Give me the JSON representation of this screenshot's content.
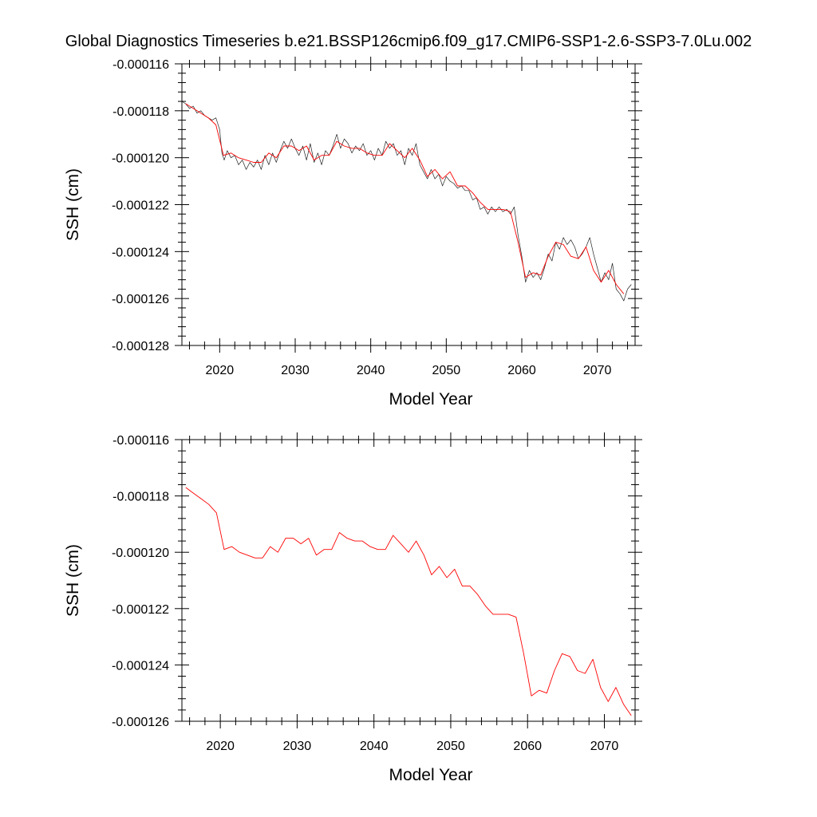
{
  "title": "Global Diagnostics Timeseries b.e21.BSSP126cmip6.f09_g17.CMIP6-SSP1-2.6-SSP3-7.0Lu.002",
  "colors": {
    "monthly": "#222222",
    "annual": "#ff0000",
    "axis": "#000000"
  },
  "chart_data": [
    {
      "type": "line",
      "xlabel": "Model Year",
      "ylabel": "SSH (cm)",
      "xlim": [
        2015,
        2075
      ],
      "ylim": [
        -0.000128,
        -0.000116
      ],
      "xticks": [
        2020,
        2030,
        2040,
        2050,
        2060,
        2070
      ],
      "xtick_labels": [
        "2020",
        "2030",
        "2040",
        "2050",
        "2060",
        "2070"
      ],
      "yticks": [
        -0.000128,
        -0.000126,
        -0.000124,
        -0.000122,
        -0.00012,
        -0.000118,
        -0.000116
      ],
      "ytick_labels": [
        "-0.000128",
        "-0.000126",
        "-0.000124",
        "-0.000122",
        "-0.000120",
        "-0.000118",
        "-0.000116"
      ],
      "grid": false,
      "series": [
        {
          "kind": "monthly",
          "x": [
            2015.0,
            2015.5,
            2016.0,
            2016.5,
            2017.0,
            2017.5,
            2018.0,
            2018.5,
            2019.0,
            2019.5,
            2020.0,
            2020.3,
            2020.6,
            2021.0,
            2021.5,
            2022.0,
            2022.5,
            2023.0,
            2023.5,
            2024.0,
            2024.5,
            2025.0,
            2025.5,
            2026.0,
            2026.5,
            2027.0,
            2027.5,
            2028.0,
            2028.5,
            2029.0,
            2029.5,
            2030.0,
            2030.5,
            2031.0,
            2031.5,
            2032.0,
            2032.5,
            2033.0,
            2033.5,
            2034.0,
            2034.5,
            2035.0,
            2035.5,
            2036.0,
            2036.5,
            2037.0,
            2037.5,
            2038.0,
            2038.5,
            2039.0,
            2039.5,
            2040.0,
            2040.5,
            2041.0,
            2041.5,
            2042.0,
            2042.5,
            2043.0,
            2043.5,
            2044.0,
            2044.5,
            2045.0,
            2045.5,
            2046.0,
            2046.5,
            2047.0,
            2047.5,
            2048.0,
            2048.5,
            2049.0,
            2049.5,
            2050.0,
            2050.5,
            2051.0,
            2051.5,
            2052.0,
            2052.5,
            2053.0,
            2053.5,
            2054.0,
            2054.5,
            2055.0,
            2055.5,
            2056.0,
            2056.5,
            2057.0,
            2057.5,
            2058.0,
            2058.5,
            2059.0,
            2059.5,
            2060.0,
            2060.5,
            2061.0,
            2061.5,
            2062.0,
            2062.5,
            2063.0,
            2063.5,
            2064.0,
            2064.5,
            2065.0,
            2065.5,
            2066.0,
            2066.5,
            2067.0,
            2067.5,
            2068.0,
            2068.5,
            2069.0,
            2069.5,
            2070.0,
            2070.5,
            2071.0,
            2071.5,
            2072.0,
            2072.5,
            2073.0,
            2073.5,
            2074.0,
            2074.5
          ],
          "values": [
            -0.0001176,
            -0.0001177,
            -0.0001179,
            -0.0001178,
            -0.0001181,
            -0.000118,
            -0.0001182,
            -0.0001183,
            -0.0001184,
            -0.0001183,
            -0.0001188,
            -0.0001198,
            -0.0001201,
            -0.0001197,
            -0.00012,
            -0.0001199,
            -0.0001203,
            -0.0001201,
            -0.0001205,
            -0.0001202,
            -0.0001204,
            -0.0001201,
            -0.0001205,
            -0.0001199,
            -0.0001203,
            -0.0001198,
            -0.0001202,
            -0.0001197,
            -0.0001193,
            -0.0001196,
            -0.0001192,
            -0.0001196,
            -0.0001199,
            -0.0001195,
            -0.0001201,
            -0.0001194,
            -0.0001202,
            -0.0001198,
            -0.0001203,
            -0.0001197,
            -0.0001199,
            -0.0001195,
            -0.000119,
            -0.0001196,
            -0.0001192,
            -0.0001194,
            -0.0001198,
            -0.0001195,
            -0.0001197,
            -0.0001194,
            -0.0001199,
            -0.0001197,
            -0.0001201,
            -0.0001196,
            -0.0001199,
            -0.0001193,
            -0.0001196,
            -0.0001194,
            -0.0001199,
            -0.0001197,
            -0.0001203,
            -0.0001196,
            -0.0001199,
            -0.0001194,
            -0.0001203,
            -0.0001206,
            -0.0001209,
            -0.0001205,
            -0.0001209,
            -0.0001207,
            -0.0001212,
            -0.0001208,
            -0.000121,
            -0.0001211,
            -0.0001213,
            -0.0001212,
            -0.0001214,
            -0.0001214,
            -0.0001218,
            -0.0001217,
            -0.0001222,
            -0.0001221,
            -0.0001224,
            -0.0001221,
            -0.0001223,
            -0.0001221,
            -0.0001223,
            -0.0001222,
            -0.0001224,
            -0.0001221,
            -0.0001233,
            -0.0001242,
            -0.0001253,
            -0.0001248,
            -0.0001251,
            -0.0001249,
            -0.0001252,
            -0.0001247,
            -0.0001241,
            -0.0001244,
            -0.0001236,
            -0.0001239,
            -0.0001234,
            -0.0001237,
            -0.0001235,
            -0.0001238,
            -0.0001243,
            -0.0001241,
            -0.0001238,
            -0.0001234,
            -0.0001241,
            -0.0001247,
            -0.0001253,
            -0.0001249,
            -0.0001252,
            -0.0001245,
            -0.0001256,
            -0.0001258,
            -0.0001261,
            -0.0001256,
            -0.0001254
          ]
        },
        {
          "kind": "annual",
          "x": [
            2015.5,
            2016.5,
            2017.5,
            2018.5,
            2019.5,
            2020.5,
            2021.5,
            2022.5,
            2023.5,
            2024.5,
            2025.5,
            2026.5,
            2027.5,
            2028.5,
            2029.5,
            2030.5,
            2031.5,
            2032.5,
            2033.5,
            2034.5,
            2035.5,
            2036.5,
            2037.5,
            2038.5,
            2039.5,
            2040.5,
            2041.5,
            2042.5,
            2043.5,
            2044.5,
            2045.5,
            2046.5,
            2047.5,
            2048.5,
            2049.5,
            2050.5,
            2051.5,
            2052.5,
            2053.5,
            2054.5,
            2055.5,
            2056.5,
            2057.5,
            2058.5,
            2059.5,
            2060.5,
            2061.5,
            2062.5,
            2063.5,
            2064.5,
            2065.5,
            2066.5,
            2067.5,
            2068.5,
            2069.5,
            2070.5,
            2071.5,
            2072.5,
            2073.5
          ],
          "values": [
            -0.0001177,
            -0.0001179,
            -0.0001181,
            -0.0001183,
            -0.0001186,
            -0.0001199,
            -0.0001198,
            -0.00012,
            -0.0001201,
            -0.0001202,
            -0.0001202,
            -0.0001198,
            -0.00012,
            -0.0001195,
            -0.0001195,
            -0.0001197,
            -0.0001195,
            -0.0001201,
            -0.0001199,
            -0.0001199,
            -0.0001193,
            -0.0001195,
            -0.0001196,
            -0.0001196,
            -0.0001198,
            -0.0001199,
            -0.0001199,
            -0.0001194,
            -0.0001197,
            -0.00012,
            -0.0001196,
            -0.0001201,
            -0.0001208,
            -0.0001205,
            -0.0001209,
            -0.0001206,
            -0.0001212,
            -0.0001212,
            -0.0001215,
            -0.0001219,
            -0.0001222,
            -0.0001222,
            -0.0001222,
            -0.0001223,
            -0.0001236,
            -0.0001251,
            -0.0001249,
            -0.000125,
            -0.0001242,
            -0.0001236,
            -0.0001237,
            -0.0001242,
            -0.0001243,
            -0.0001238,
            -0.0001248,
            -0.0001253,
            -0.0001248,
            -0.0001254,
            -0.0001258
          ]
        }
      ]
    },
    {
      "type": "line",
      "xlabel": "Model Year",
      "ylabel": "SSH (cm)",
      "xlim": [
        2015,
        2074
      ],
      "ylim": [
        -0.000126,
        -0.000116
      ],
      "xticks": [
        2020,
        2030,
        2040,
        2050,
        2060,
        2070
      ],
      "xtick_labels": [
        "2020",
        "2030",
        "2040",
        "2050",
        "2060",
        "2070"
      ],
      "yticks": [
        -0.000126,
        -0.000124,
        -0.000122,
        -0.00012,
        -0.000118,
        -0.000116
      ],
      "ytick_labels": [
        "-0.000126",
        "-0.000124",
        "-0.000122",
        "-0.000120",
        "-0.000118",
        "-0.000116"
      ],
      "grid": false,
      "series": [
        {
          "kind": "annual",
          "x": [
            2015.5,
            2016.5,
            2017.5,
            2018.5,
            2019.5,
            2020.5,
            2021.5,
            2022.5,
            2023.5,
            2024.5,
            2025.5,
            2026.5,
            2027.5,
            2028.5,
            2029.5,
            2030.5,
            2031.5,
            2032.5,
            2033.5,
            2034.5,
            2035.5,
            2036.5,
            2037.5,
            2038.5,
            2039.5,
            2040.5,
            2041.5,
            2042.5,
            2043.5,
            2044.5,
            2045.5,
            2046.5,
            2047.5,
            2048.5,
            2049.5,
            2050.5,
            2051.5,
            2052.5,
            2053.5,
            2054.5,
            2055.5,
            2056.5,
            2057.5,
            2058.5,
            2059.5,
            2060.5,
            2061.5,
            2062.5,
            2063.5,
            2064.5,
            2065.5,
            2066.5,
            2067.5,
            2068.5,
            2069.5,
            2070.5,
            2071.5,
            2072.5,
            2073.5
          ],
          "values": [
            -0.0001177,
            -0.0001179,
            -0.0001181,
            -0.0001183,
            -0.0001186,
            -0.0001199,
            -0.0001198,
            -0.00012,
            -0.0001201,
            -0.0001202,
            -0.0001202,
            -0.0001198,
            -0.00012,
            -0.0001195,
            -0.0001195,
            -0.0001197,
            -0.0001195,
            -0.0001201,
            -0.0001199,
            -0.0001199,
            -0.0001193,
            -0.0001195,
            -0.0001196,
            -0.0001196,
            -0.0001198,
            -0.0001199,
            -0.0001199,
            -0.0001194,
            -0.0001197,
            -0.00012,
            -0.0001196,
            -0.0001201,
            -0.0001208,
            -0.0001205,
            -0.0001209,
            -0.0001206,
            -0.0001212,
            -0.0001212,
            -0.0001215,
            -0.0001219,
            -0.0001222,
            -0.0001222,
            -0.0001222,
            -0.0001223,
            -0.0001236,
            -0.0001251,
            -0.0001249,
            -0.000125,
            -0.0001242,
            -0.0001236,
            -0.0001237,
            -0.0001242,
            -0.0001243,
            -0.0001238,
            -0.0001248,
            -0.0001253,
            -0.0001248,
            -0.0001254,
            -0.0001258
          ]
        }
      ]
    }
  ]
}
